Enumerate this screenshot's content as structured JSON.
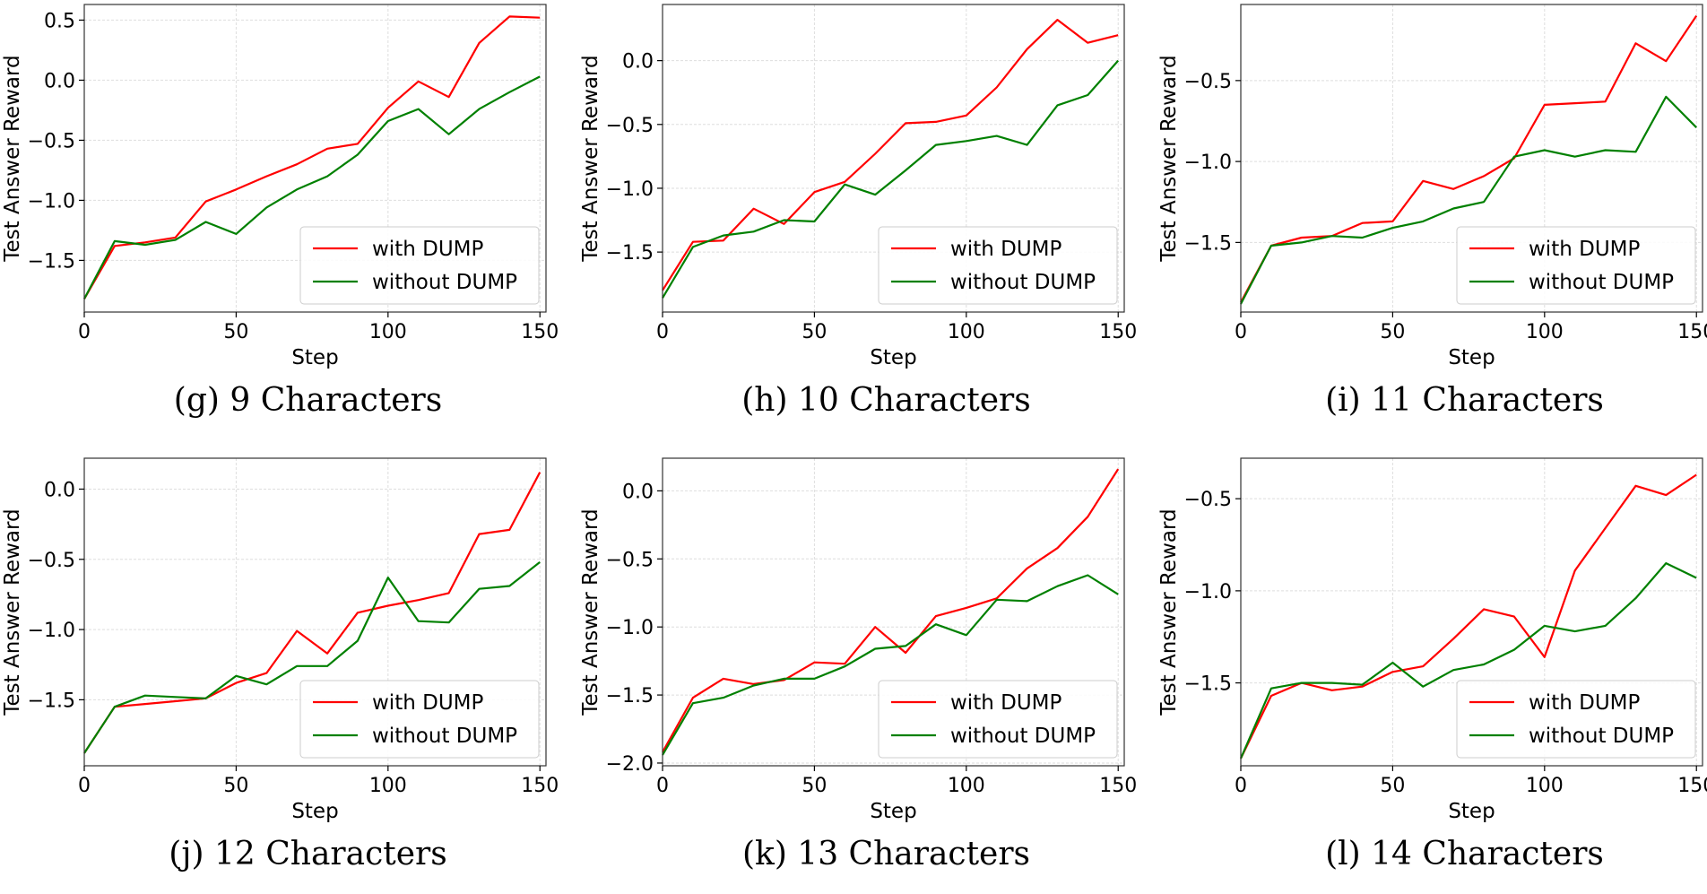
{
  "chart_data": [
    {
      "type": "line",
      "caption": "(g) 9 Characters",
      "xlabel": "Step",
      "ylabel": "Test Answer Reward",
      "xlim": [
        0,
        152
      ],
      "ylim": [
        -1.93,
        0.63
      ],
      "xticks": [
        0,
        50,
        100,
        150
      ],
      "yticks": [
        -1.5,
        -1.0,
        -0.5,
        0.0,
        0.5
      ],
      "ytick_labels": [
        "−1.5",
        "−1.0",
        "−0.5",
        "0.0",
        "0.5"
      ],
      "grid": true,
      "legend_position": "bottom-right",
      "x": [
        0,
        10,
        20,
        30,
        40,
        50,
        60,
        70,
        80,
        90,
        100,
        110,
        120,
        130,
        140,
        150
      ],
      "series": [
        {
          "name": "with DUMP",
          "color": "#ff0000",
          "values": [
            -1.82,
            -1.38,
            -1.35,
            -1.31,
            -1.01,
            -0.91,
            -0.8,
            -0.7,
            -0.57,
            -0.53,
            -0.23,
            -0.01,
            -0.14,
            0.31,
            0.53,
            0.52
          ]
        },
        {
          "name": "without DUMP",
          "color": "#008000",
          "values": [
            -1.82,
            -1.34,
            -1.37,
            -1.33,
            -1.18,
            -1.28,
            -1.06,
            -0.91,
            -0.8,
            -0.62,
            -0.34,
            -0.24,
            -0.45,
            -0.24,
            -0.1,
            0.03
          ]
        }
      ]
    },
    {
      "type": "line",
      "caption": "(h) 10 Characters",
      "xlabel": "Step",
      "ylabel": "Test Answer Reward",
      "xlim": [
        0,
        152
      ],
      "ylim": [
        -1.97,
        0.44
      ],
      "xticks": [
        0,
        50,
        100,
        150
      ],
      "yticks": [
        -1.5,
        -1.0,
        -0.5,
        0.0
      ],
      "ytick_labels": [
        "−1.5",
        "−1.0",
        "−0.5",
        "0.0"
      ],
      "grid": true,
      "legend_position": "bottom-right",
      "x": [
        0,
        10,
        20,
        30,
        40,
        50,
        60,
        70,
        80,
        90,
        100,
        110,
        120,
        130,
        140,
        150
      ],
      "series": [
        {
          "name": "with DUMP",
          "color": "#ff0000",
          "values": [
            -1.8,
            -1.42,
            -1.41,
            -1.16,
            -1.28,
            -1.03,
            -0.95,
            -0.73,
            -0.49,
            -0.48,
            -0.43,
            -0.21,
            0.09,
            0.32,
            0.14,
            0.2
          ]
        },
        {
          "name": "without DUMP",
          "color": "#008000",
          "values": [
            -1.86,
            -1.46,
            -1.37,
            -1.34,
            -1.25,
            -1.26,
            -0.97,
            -1.05,
            -0.86,
            -0.66,
            -0.63,
            -0.59,
            -0.66,
            -0.35,
            -0.27,
            0.0
          ]
        }
      ]
    },
    {
      "type": "line",
      "caption": "(i) 11 Characters",
      "xlabel": "Step",
      "ylabel": "Test Answer Reward",
      "xlim": [
        0,
        152
      ],
      "ylim": [
        -1.93,
        -0.03
      ],
      "xticks": [
        0,
        50,
        100,
        150
      ],
      "yticks": [
        -1.5,
        -1.0,
        -0.5
      ],
      "ytick_labels": [
        "−1.5",
        "−1.0",
        "−0.5"
      ],
      "grid": true,
      "legend_position": "bottom-right",
      "x": [
        0,
        10,
        20,
        30,
        40,
        50,
        60,
        70,
        80,
        90,
        100,
        110,
        120,
        130,
        140,
        150
      ],
      "series": [
        {
          "name": "with DUMP",
          "color": "#ff0000",
          "values": [
            -1.87,
            -1.52,
            -1.47,
            -1.46,
            -1.38,
            -1.37,
            -1.12,
            -1.17,
            -1.09,
            -0.98,
            -0.65,
            -0.64,
            -0.63,
            -0.27,
            -0.38,
            -0.1
          ]
        },
        {
          "name": "without DUMP",
          "color": "#008000",
          "values": [
            -1.88,
            -1.52,
            -1.5,
            -1.46,
            -1.47,
            -1.41,
            -1.37,
            -1.29,
            -1.25,
            -0.97,
            -0.93,
            -0.97,
            -0.93,
            -0.94,
            -0.6,
            -0.79
          ]
        }
      ]
    },
    {
      "type": "line",
      "caption": "(j) 12 Characters",
      "xlabel": "Step",
      "ylabel": "Test Answer Reward",
      "xlim": [
        0,
        152
      ],
      "ylim": [
        -1.97,
        0.22
      ],
      "xticks": [
        0,
        50,
        100,
        150
      ],
      "yticks": [
        -1.5,
        -1.0,
        -0.5,
        0.0
      ],
      "ytick_labels": [
        "−1.5",
        "−1.0",
        "−0.5",
        "0.0"
      ],
      "grid": true,
      "legend_position": "bottom-right",
      "x": [
        0,
        10,
        20,
        30,
        40,
        50,
        60,
        70,
        80,
        90,
        100,
        110,
        120,
        130,
        140,
        150
      ],
      "series": [
        {
          "name": "with DUMP",
          "color": "#ff0000",
          "values": [
            -1.88,
            -1.55,
            -1.53,
            -1.51,
            -1.49,
            -1.38,
            -1.31,
            -1.01,
            -1.17,
            -0.88,
            -0.83,
            -0.79,
            -0.74,
            -0.32,
            -0.29,
            0.12
          ]
        },
        {
          "name": "without DUMP",
          "color": "#008000",
          "values": [
            -1.88,
            -1.55,
            -1.47,
            -1.48,
            -1.49,
            -1.33,
            -1.39,
            -1.26,
            -1.26,
            -1.08,
            -0.63,
            -0.94,
            -0.95,
            -0.71,
            -0.69,
            -0.52
          ]
        }
      ]
    },
    {
      "type": "line",
      "caption": "(k) 13 Characters",
      "xlabel": "Step",
      "ylabel": "Test Answer Reward",
      "xlim": [
        0,
        152
      ],
      "ylim": [
        -2.02,
        0.24
      ],
      "xticks": [
        0,
        50,
        100,
        150
      ],
      "yticks": [
        -2.0,
        -1.5,
        -1.0,
        -0.5,
        0.0
      ],
      "ytick_labels": [
        "−2.0",
        "−1.5",
        "−1.0",
        "−0.5",
        "0.0"
      ],
      "grid": true,
      "legend_position": "bottom-right",
      "x": [
        0,
        10,
        20,
        30,
        40,
        50,
        60,
        70,
        80,
        90,
        100,
        110,
        120,
        130,
        140,
        150
      ],
      "series": [
        {
          "name": "with DUMP",
          "color": "#ff0000",
          "values": [
            -1.92,
            -1.52,
            -1.38,
            -1.42,
            -1.39,
            -1.26,
            -1.27,
            -1.0,
            -1.19,
            -0.92,
            -0.86,
            -0.79,
            -0.57,
            -0.42,
            -0.19,
            0.16
          ]
        },
        {
          "name": "without DUMP",
          "color": "#008000",
          "values": [
            -1.94,
            -1.56,
            -1.52,
            -1.43,
            -1.38,
            -1.38,
            -1.29,
            -1.16,
            -1.14,
            -0.98,
            -1.06,
            -0.8,
            -0.81,
            -0.7,
            -0.62,
            -0.76
          ]
        }
      ]
    },
    {
      "type": "line",
      "caption": "(l) 14 Characters",
      "xlabel": "Step",
      "ylabel": "Test Answer Reward",
      "xlim": [
        0,
        152
      ],
      "ylim": [
        -1.95,
        -0.28
      ],
      "xticks": [
        0,
        50,
        100,
        150
      ],
      "yticks": [
        -1.5,
        -1.0,
        -0.5
      ],
      "ytick_labels": [
        "−1.5",
        "−1.0",
        "−0.5"
      ],
      "grid": true,
      "legend_position": "bottom-right",
      "x": [
        0,
        10,
        20,
        30,
        40,
        50,
        60,
        70,
        80,
        90,
        100,
        110,
        120,
        130,
        140,
        150
      ],
      "series": [
        {
          "name": "with DUMP",
          "color": "#ff0000",
          "values": [
            -1.91,
            -1.57,
            -1.5,
            -1.54,
            -1.52,
            -1.44,
            -1.41,
            -1.26,
            -1.1,
            -1.14,
            -1.36,
            -0.89,
            -0.66,
            -0.43,
            -0.48,
            -0.37
          ]
        },
        {
          "name": "without DUMP",
          "color": "#008000",
          "values": [
            -1.91,
            -1.53,
            -1.5,
            -1.5,
            -1.51,
            -1.39,
            -1.52,
            -1.43,
            -1.4,
            -1.32,
            -1.19,
            -1.22,
            -1.19,
            -1.04,
            -0.85,
            -0.93
          ]
        }
      ]
    }
  ]
}
